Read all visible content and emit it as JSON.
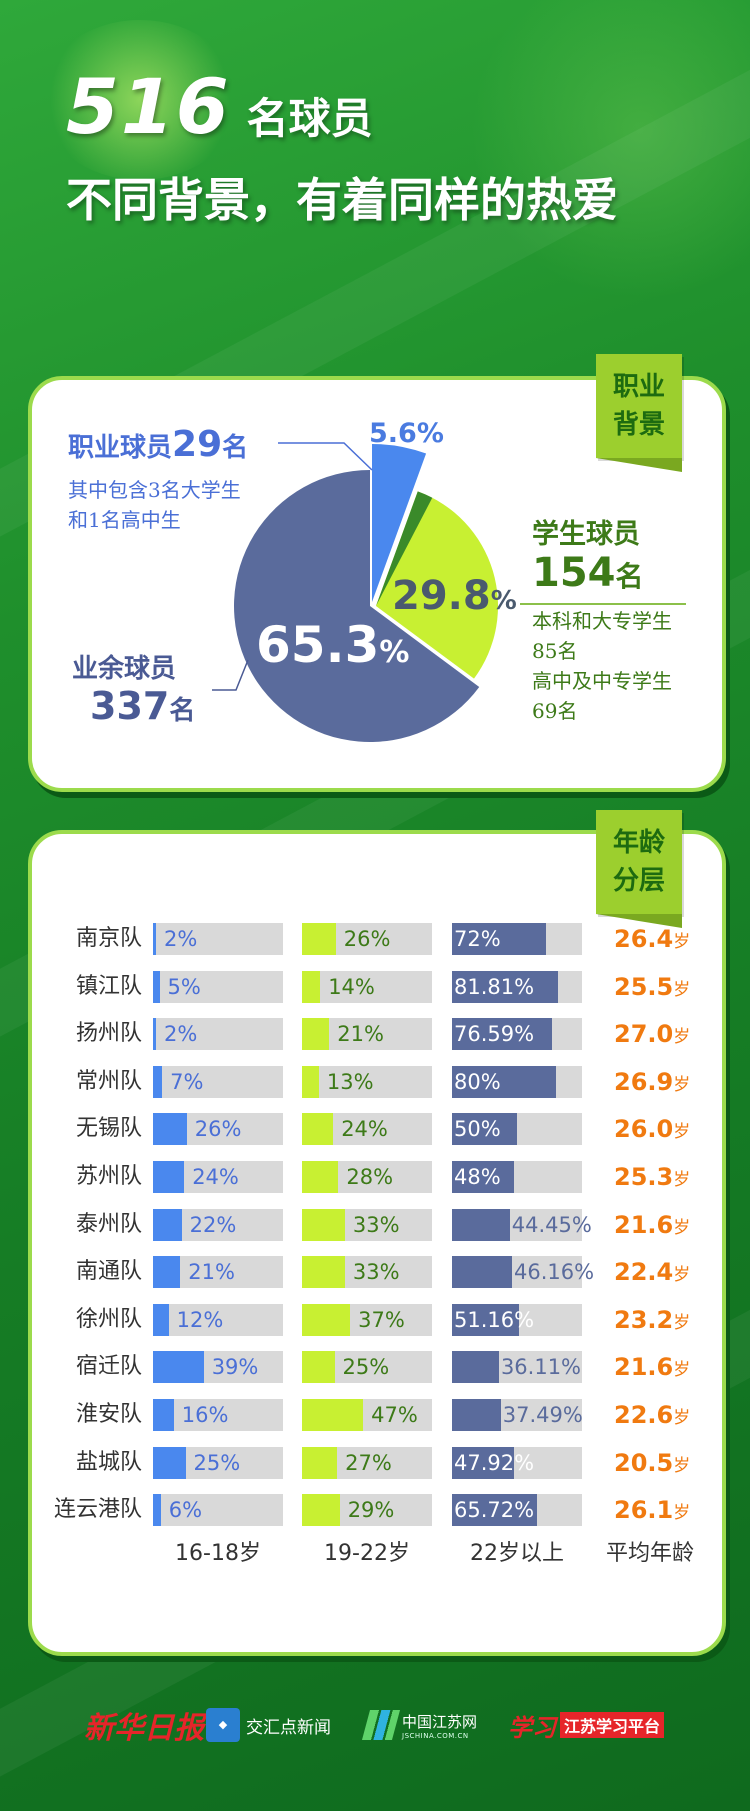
{
  "header": {
    "total": "516",
    "total_suffix": "名球员",
    "subtitle": "不同背景，有着同样的热爱"
  },
  "pie_section": {
    "tag": [
      "职业",
      "背景"
    ],
    "percent_sign": "%",
    "pro": {
      "label": "职业球员",
      "count": "29",
      "unit": "名",
      "notes": [
        "其中包含3名大学生",
        "和1名高中生"
      ],
      "pct_text": "5.6%"
    },
    "student": {
      "label": "学生球员",
      "count": "154",
      "unit": "名",
      "notes": [
        "本科和大专学生",
        "85名",
        "高中及中专学生",
        "69名"
      ],
      "pct_value": "29.8"
    },
    "amateur": {
      "label": "业余球员",
      "count": "337",
      "unit": "名",
      "pct_value": "65.3"
    },
    "colors": {
      "pro": "#4a88ee",
      "student": "#c8f032",
      "amateur": "#5a6b9c",
      "student_dark": "#3a8a2a"
    }
  },
  "chart_data": [
    {
      "type": "pie",
      "labels": [
        "职业球员",
        "学生球员",
        "业余球员"
      ],
      "values": [
        5.6,
        29.8,
        65.3
      ],
      "counts": [
        29,
        154,
        337
      ]
    },
    {
      "type": "bar",
      "columns": [
        "16-18岁",
        "19-22岁",
        "22岁以上",
        "平均年龄"
      ],
      "age_unit": "岁",
      "colors": {
        "c16_18": "#4a88ee",
        "c19_22": "#c8f032",
        "c22plus": "#5a6b9c",
        "avg": "#f07a10",
        "track": "#d9d9d9"
      },
      "rows": [
        {
          "team": "南京队",
          "v16_18": "2%",
          "v19_22": "26%",
          "v22plus": "72%",
          "avg": "26.4"
        },
        {
          "team": "镇江队",
          "v16_18": "5%",
          "v19_22": "14%",
          "v22plus": "81.81%",
          "avg": "25.5"
        },
        {
          "team": "扬州队",
          "v16_18": "2%",
          "v19_22": "21%",
          "v22plus": "76.59%",
          "avg": "27.0"
        },
        {
          "team": "常州队",
          "v16_18": "7%",
          "v19_22": "13%",
          "v22plus": "80%",
          "avg": "26.9"
        },
        {
          "team": "无锡队",
          "v16_18": "26%",
          "v19_22": "24%",
          "v22plus": "50%",
          "avg": "26.0"
        },
        {
          "team": "苏州队",
          "v16_18": "24%",
          "v19_22": "28%",
          "v22plus": "48%",
          "avg": "25.3"
        },
        {
          "team": "泰州队",
          "v16_18": "22%",
          "v19_22": "33%",
          "v22plus": "44.45%",
          "avg": "21.6"
        },
        {
          "team": "南通队",
          "v16_18": "21%",
          "v19_22": "33%",
          "v22plus": "46.16%",
          "avg": "22.4"
        },
        {
          "team": "徐州队",
          "v16_18": "12%",
          "v19_22": "37%",
          "v22plus": "51.16%",
          "avg": "23.2"
        },
        {
          "team": "宿迁队",
          "v16_18": "39%",
          "v19_22": "25%",
          "v22plus": "36.11%",
          "avg": "21.6"
        },
        {
          "team": "淮安队",
          "v16_18": "16%",
          "v19_22": "47%",
          "v22plus": "37.49%",
          "avg": "22.6"
        },
        {
          "team": "盐城队",
          "v16_18": "25%",
          "v19_22": "27%",
          "v22plus": "47.92%",
          "avg": "20.5"
        },
        {
          "team": "连云港队",
          "v16_18": "6%",
          "v19_22": "29%",
          "v22plus": "65.72%",
          "avg": "26.1"
        }
      ]
    }
  ],
  "age_section": {
    "tag": [
      "年龄",
      "分层"
    ]
  },
  "footer": {
    "logos": [
      "新华日报",
      "交汇点新闻",
      "中国江苏网",
      "学习",
      "江苏学习平台"
    ],
    "domain": "JSCHINA.COM.CN"
  }
}
